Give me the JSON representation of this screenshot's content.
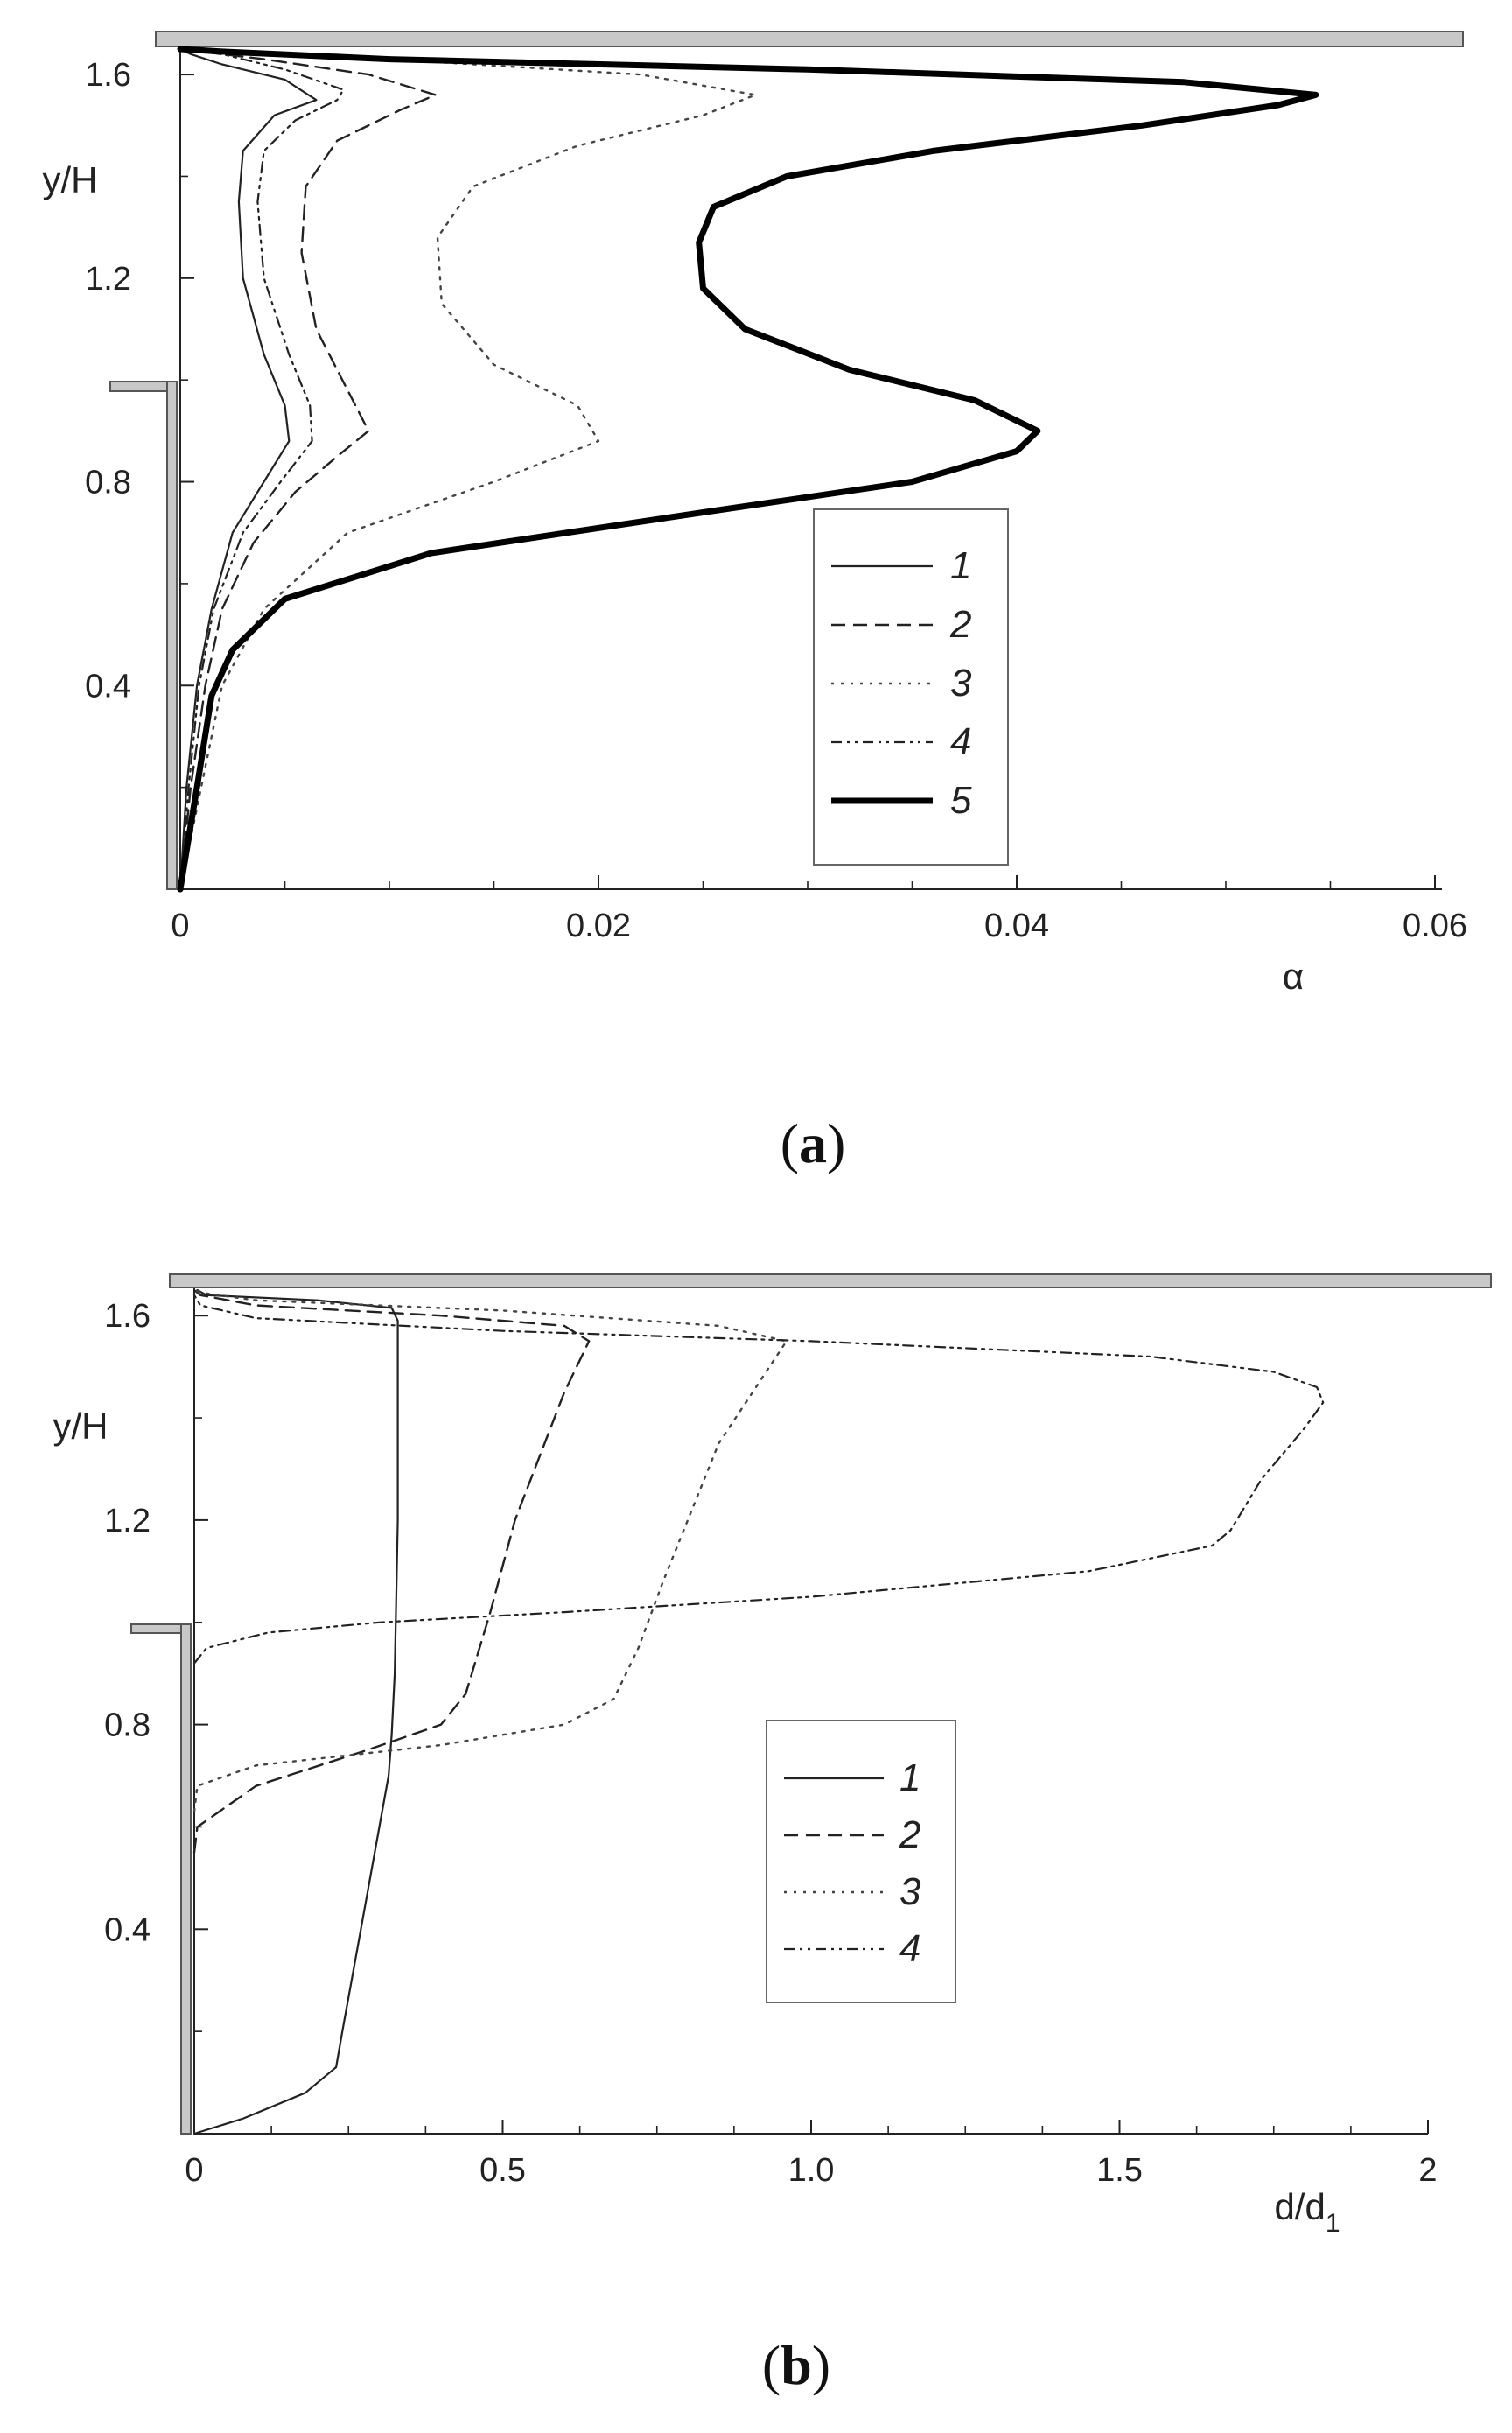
{
  "figure": {
    "panels": [
      "(a)",
      "(b)"
    ],
    "panel_letters": [
      "a",
      "b"
    ]
  },
  "chart_data": [
    {
      "type": "line",
      "panel": "(a)",
      "xlabel": "α",
      "ylabel": "y/H",
      "xlim": [
        0,
        0.06
      ],
      "ylim": [
        0,
        1.65
      ],
      "xticks": [
        0,
        0.02,
        0.04,
        0.06
      ],
      "xtick_labels": [
        "0",
        "0.02",
        "0.04",
        "0.06"
      ],
      "yticks": [
        0.4,
        0.8,
        1.2,
        1.6
      ],
      "ytick_labels": [
        "0.4",
        "0.8",
        "1.2",
        "1.6"
      ],
      "grid": false,
      "legend_position": "bottom-right",
      "series": [
        {
          "name": "1",
          "x": [
            0,
            0.0003,
            0.0008,
            0.0015,
            0.0025,
            0.004,
            0.0052,
            0.005,
            0.004,
            0.003,
            0.0028,
            0.003,
            0.0045,
            0.0065,
            0.005,
            0.002,
            0.0005,
            0
          ],
          "y": [
            0,
            0.2,
            0.4,
            0.55,
            0.7,
            0.8,
            0.88,
            0.95,
            1.05,
            1.2,
            1.35,
            1.45,
            1.52,
            1.55,
            1.59,
            1.62,
            1.64,
            1.65
          ]
        },
        {
          "name": "2",
          "x": [
            0,
            0.0005,
            0.0012,
            0.002,
            0.0035,
            0.0055,
            0.0075,
            0.009,
            0.008,
            0.0065,
            0.0058,
            0.006,
            0.0075,
            0.0105,
            0.0122,
            0.009,
            0.004,
            0.001,
            0
          ],
          "y": [
            0,
            0.2,
            0.4,
            0.55,
            0.68,
            0.78,
            0.85,
            0.9,
            0.98,
            1.1,
            1.25,
            1.38,
            1.47,
            1.53,
            1.56,
            1.6,
            1.63,
            1.645,
            1.65
          ]
        },
        {
          "name": "3",
          "x": [
            0,
            0.001,
            0.002,
            0.004,
            0.008,
            0.015,
            0.02,
            0.019,
            0.015,
            0.0125,
            0.0123,
            0.014,
            0.019,
            0.025,
            0.0275,
            0.022,
            0.01,
            0.002,
            0
          ],
          "y": [
            0,
            0.2,
            0.4,
            0.55,
            0.7,
            0.8,
            0.88,
            0.95,
            1.03,
            1.15,
            1.28,
            1.38,
            1.46,
            1.52,
            1.56,
            1.6,
            1.63,
            1.645,
            1.65
          ]
        },
        {
          "name": "4",
          "x": [
            0,
            0.0004,
            0.0009,
            0.0016,
            0.003,
            0.0048,
            0.0063,
            0.0062,
            0.0052,
            0.004,
            0.0037,
            0.004,
            0.0055,
            0.0075,
            0.0078,
            0.005,
            0.002,
            0
          ],
          "y": [
            0,
            0.2,
            0.4,
            0.55,
            0.7,
            0.8,
            0.88,
            0.95,
            1.05,
            1.2,
            1.35,
            1.45,
            1.51,
            1.55,
            1.57,
            1.61,
            1.64,
            1.65
          ]
        },
        {
          "name": "5",
          "x": [
            0,
            0.0008,
            0.0015,
            0.0025,
            0.005,
            0.012,
            0.025,
            0.035,
            0.04,
            0.041,
            0.038,
            0.032,
            0.027,
            0.025,
            0.0248,
            0.0255,
            0.029,
            0.036,
            0.046,
            0.0525,
            0.0543,
            0.048,
            0.03,
            0.01,
            0.002,
            0
          ],
          "y": [
            0,
            0.2,
            0.38,
            0.47,
            0.57,
            0.66,
            0.74,
            0.8,
            0.86,
            0.9,
            0.96,
            1.02,
            1.1,
            1.18,
            1.27,
            1.34,
            1.4,
            1.45,
            1.5,
            1.54,
            1.56,
            1.585,
            1.61,
            1.63,
            1.645,
            1.65
          ]
        }
      ]
    },
    {
      "type": "line",
      "panel": "(b)",
      "xlabel": "d/d",
      "xlabel_subscript": "1",
      "ylabel": "y/H",
      "xlim": [
        0,
        2
      ],
      "ylim": [
        0,
        1.65
      ],
      "xticks": [
        0,
        0.5,
        1.0,
        1.5,
        2
      ],
      "xtick_labels": [
        "0",
        "0.5",
        "1.0",
        "1.5",
        "2"
      ],
      "yticks": [
        0.4,
        0.8,
        1.2,
        1.6
      ],
      "ytick_labels": [
        "0.4",
        "0.8",
        "1.2",
        "1.6"
      ],
      "grid": false,
      "legend_position": "center-right",
      "series": [
        {
          "name": "1",
          "x": [
            0,
            0.08,
            0.18,
            0.23,
            0.24,
            0.27,
            0.3,
            0.315,
            0.32,
            0.325,
            0.33,
            0.33,
            0.32,
            0.2,
            0.02,
            0.005
          ],
          "y": [
            0,
            0.03,
            0.08,
            0.13,
            0.2,
            0.4,
            0.6,
            0.7,
            0.78,
            0.9,
            1.2,
            1.59,
            1.615,
            1.63,
            1.64,
            1.65
          ]
        },
        {
          "name": "2",
          "x": [
            0,
            0.005,
            0.1,
            0.28,
            0.4,
            0.44,
            0.48,
            0.52,
            0.6,
            0.64,
            0.6,
            0.4,
            0.1,
            0.01,
            0
          ],
          "y": [
            0.55,
            0.6,
            0.68,
            0.75,
            0.8,
            0.86,
            1.02,
            1.2,
            1.45,
            1.55,
            1.58,
            1.6,
            1.62,
            1.64,
            1.65
          ]
        },
        {
          "name": "3",
          "x": [
            0,
            0.005,
            0.1,
            0.4,
            0.6,
            0.68,
            0.72,
            0.76,
            0.85,
            0.96,
            0.85,
            0.5,
            0.1,
            0.01,
            0
          ],
          "y": [
            0.63,
            0.68,
            0.72,
            0.76,
            0.8,
            0.85,
            0.95,
            1.08,
            1.35,
            1.55,
            1.58,
            1.61,
            1.63,
            1.645,
            1.65
          ]
        },
        {
          "name": "4",
          "x": [
            0,
            0.02,
            0.12,
            0.3,
            0.6,
            1.0,
            1.45,
            1.65,
            1.68,
            1.73,
            1.8,
            1.83,
            1.82,
            1.75,
            1.55,
            1.0,
            0.5,
            0.1,
            0.01,
            0
          ],
          "y": [
            0.92,
            0.95,
            0.98,
            1.0,
            1.02,
            1.05,
            1.1,
            1.15,
            1.18,
            1.28,
            1.38,
            1.43,
            1.46,
            1.49,
            1.52,
            1.55,
            1.57,
            1.595,
            1.62,
            1.64
          ]
        }
      ]
    }
  ]
}
